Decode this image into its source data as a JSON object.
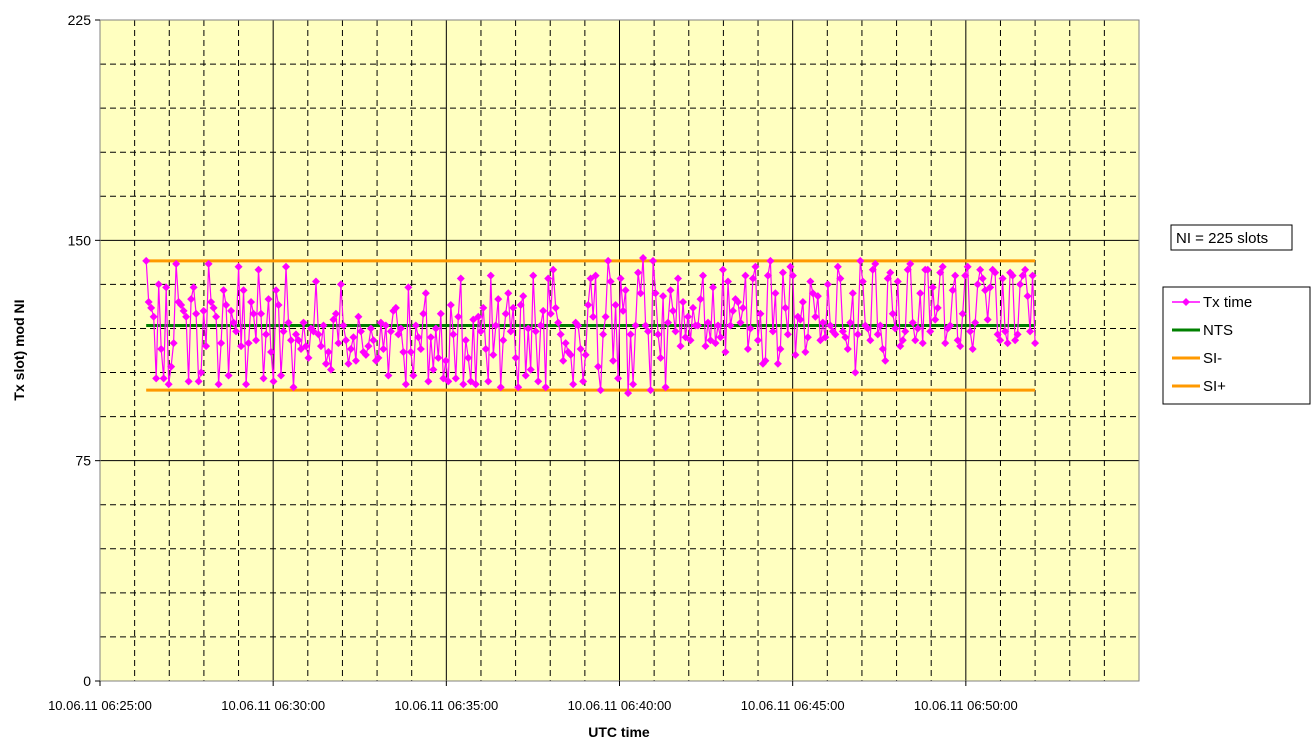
{
  "chart_data": {
    "type": "line",
    "title": "",
    "xlabel": "UTC time",
    "ylabel": "Tx slot) mod NI",
    "ylim": [
      0,
      225
    ],
    "yticks": [
      0,
      75,
      150,
      225
    ],
    "xlim": [
      "10.06.11 06:25:00",
      "10.06.11 06:55:00"
    ],
    "xticks": [
      "10.06.11 06:25:00",
      "10.06.11 06:30:00",
      "10.06.11 06:35:00",
      "10.06.11 06:40:00",
      "10.06.11 06:45:00",
      "10.06.11 06:50:00"
    ],
    "grid": true,
    "legend_position": "right",
    "annotation": "NI = 225 slots",
    "colors": {
      "plot_background": "#ffffc0",
      "tx_time": "#ff00ff",
      "nts": "#008000",
      "si": "#ff9900"
    },
    "series": [
      {
        "name": "Tx time",
        "x_start": "10.06.11 06:26:20",
        "x_end": "10.06.11 06:52:00",
        "values": [
          143,
          129,
          127,
          124,
          103,
          135,
          113,
          103,
          134,
          101,
          107,
          115,
          142,
          129,
          128,
          126,
          124,
          102,
          130,
          134,
          125,
          102,
          105,
          126,
          114,
          142,
          129,
          127,
          124,
          101,
          115,
          133,
          128,
          104,
          126,
          122,
          119,
          141,
          114,
          133,
          101,
          115,
          129,
          125,
          116,
          140,
          125,
          103,
          118,
          130,
          112,
          102,
          133,
          128,
          104,
          119,
          141,
          122,
          116,
          100,
          118,
          116,
          113,
          122,
          114,
          110,
          120,
          119,
          136,
          118,
          114,
          121,
          108,
          112,
          106,
          123,
          125,
          115,
          135,
          121,
          116,
          108,
          113,
          117,
          109,
          124,
          119,
          112,
          111,
          114,
          120,
          116,
          109,
          110,
          122,
          113,
          121,
          104,
          119,
          126,
          127,
          118,
          120,
          112,
          101,
          134,
          112,
          104,
          121,
          117,
          113,
          125,
          132,
          102,
          117,
          106,
          120,
          110,
          125,
          103,
          109,
          102,
          128,
          118,
          103,
          124,
          137,
          101,
          116,
          110,
          102,
          123,
          101,
          124,
          119,
          127,
          113,
          102,
          138,
          111,
          121,
          130,
          100,
          116,
          125,
          132,
          119,
          127,
          110,
          100,
          128,
          131,
          104,
          120,
          106,
          138,
          119,
          102,
          121,
          126,
          100,
          137,
          125,
          140,
          127,
          122,
          118,
          109,
          115,
          112,
          111,
          101,
          122,
          121,
          113,
          102,
          111,
          128,
          137,
          124,
          138,
          107,
          99,
          118,
          124,
          143,
          136,
          109,
          128,
          103,
          137,
          126,
          133,
          98,
          118,
          101,
          121,
          139,
          132,
          144,
          121,
          119,
          99,
          143,
          132,
          118,
          110,
          131,
          100,
          122,
          133,
          126,
          119,
          137,
          114,
          129,
          117,
          124,
          116,
          127,
          121,
          121,
          130,
          138,
          114,
          122,
          116,
          134,
          115,
          121,
          117,
          140,
          112,
          136,
          121,
          126,
          130,
          129,
          122,
          127,
          138,
          113,
          120,
          137,
          141,
          116,
          125,
          108,
          109,
          138,
          143,
          119,
          132,
          108,
          113,
          139,
          127,
          118,
          141,
          138,
          111,
          124,
          123,
          129,
          112,
          117,
          136,
          132,
          124,
          131,
          116,
          122,
          117,
          135,
          121,
          119,
          118,
          141,
          137,
          119,
          117,
          113,
          122,
          132,
          105,
          118,
          143,
          136,
          121,
          120,
          116,
          140,
          142,
          118,
          121,
          113,
          109,
          137,
          139,
          125,
          120,
          136,
          114,
          116,
          119,
          140,
          142,
          122,
          116,
          120,
          132,
          115,
          140,
          140,
          119,
          134,
          123,
          127,
          139,
          141,
          115,
          120,
          121,
          133,
          138,
          116,
          114,
          125,
          138,
          141,
          119,
          113,
          122,
          135,
          140,
          137,
          133,
          123,
          134,
          140,
          139,
          118,
          116,
          137,
          119,
          115,
          139,
          138,
          116,
          118,
          135,
          138,
          140,
          131,
          119,
          138,
          115
        ]
      },
      {
        "name": "NTS",
        "value": 121
      },
      {
        "name": "SI-",
        "value": 99
      },
      {
        "name": "SI+",
        "value": 143
      }
    ]
  }
}
